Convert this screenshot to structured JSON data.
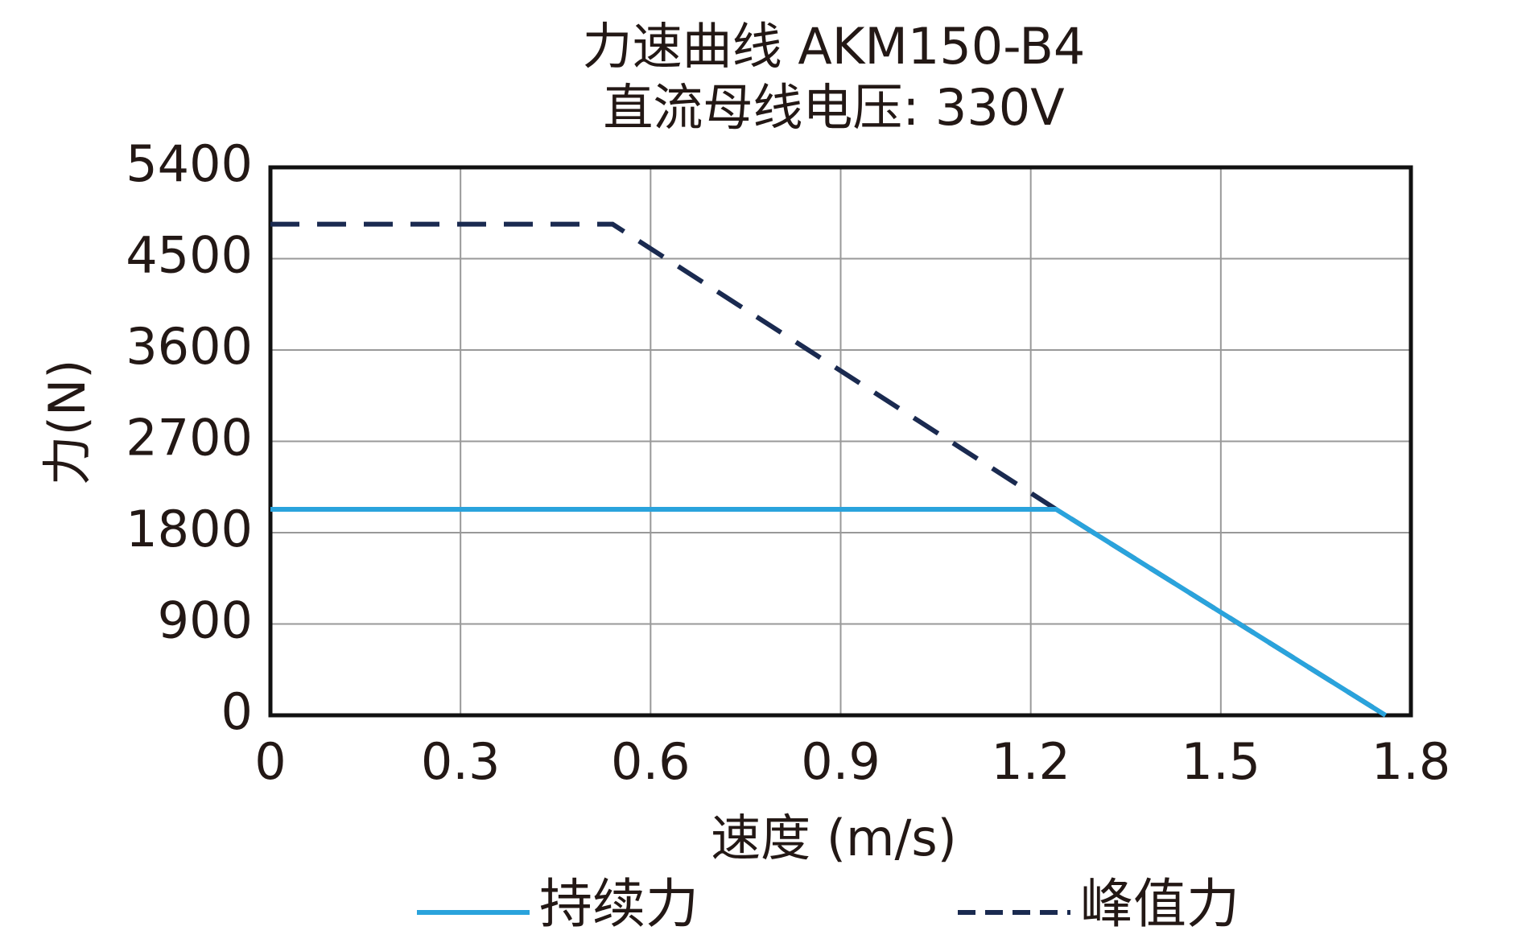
{
  "chart_data": {
    "type": "line",
    "title": "力速曲线 AKM150-B4",
    "subtitle": "直流母线电压: 330V",
    "x_label": "速度 (m/s)",
    "y_label": "力(N)",
    "xlim": [
      0,
      1.8
    ],
    "xticks": [
      0,
      0.3,
      0.6,
      0.9,
      1.2,
      1.5,
      1.8
    ],
    "ylim": [
      0,
      5400
    ],
    "yticks": [
      0,
      900,
      1800,
      2700,
      3600,
      4500,
      5400
    ],
    "grid": true,
    "legend": "bottom",
    "series": [
      {
        "name": "持续力",
        "color": "#2aa3dc",
        "dash": false,
        "x": [
          0,
          1.24,
          1.76
        ],
        "values": [
          2030,
          2030,
          0
        ]
      },
      {
        "name": "峰值力",
        "color": "#1a2a50",
        "dash": true,
        "x": [
          0,
          0.54,
          1.24,
          1.76
        ],
        "values": [
          4840,
          4840,
          2030,
          0
        ]
      }
    ]
  }
}
